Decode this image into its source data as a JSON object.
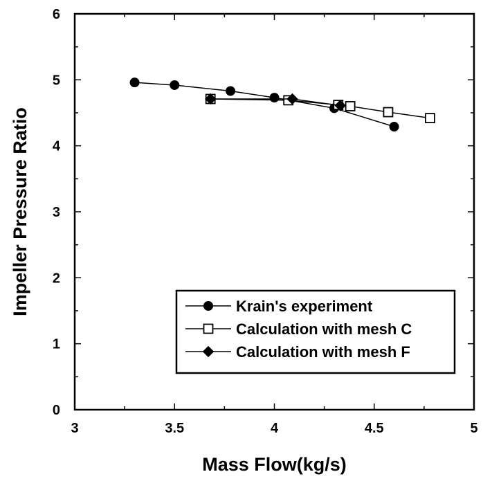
{
  "chart_data": {
    "type": "line",
    "title": "",
    "xlabel": "Mass Flow(kg/s)",
    "ylabel": "Impeller Pressure Ratio",
    "xlim": [
      3,
      5
    ],
    "ylim": [
      0,
      6
    ],
    "x_ticks": [
      "3",
      "3.5",
      "4",
      "4.5",
      "5"
    ],
    "y_ticks": [
      "0",
      "1",
      "2",
      "3",
      "4",
      "5",
      "6"
    ],
    "x_tick_values": [
      3,
      3.5,
      4,
      4.5,
      5
    ],
    "y_tick_values": [
      0,
      1,
      2,
      3,
      4,
      5,
      6
    ],
    "x_minor_step": 0.25,
    "y_minor_step": 0.5,
    "grid": false,
    "legend_position": "bottom-right",
    "series": [
      {
        "name": "Krain's experiment",
        "marker": "filled-circle",
        "color": "#000000",
        "x": [
          3.3,
          3.5,
          3.78,
          4.0,
          4.3,
          4.6
        ],
        "y": [
          4.96,
          4.92,
          4.83,
          4.73,
          4.57,
          4.29
        ]
      },
      {
        "name": "Calculation with mesh C",
        "marker": "open-square",
        "color": "#000000",
        "x": [
          3.68,
          4.07,
          4.32,
          4.38,
          4.57,
          4.78
        ],
        "y": [
          4.71,
          4.69,
          4.62,
          4.6,
          4.51,
          4.42
        ]
      },
      {
        "name": "Calculation with mesh F",
        "marker": "filled-diamond",
        "color": "#000000",
        "x": [
          3.68,
          4.09,
          4.33
        ],
        "y": [
          4.71,
          4.71,
          4.61
        ]
      }
    ]
  }
}
